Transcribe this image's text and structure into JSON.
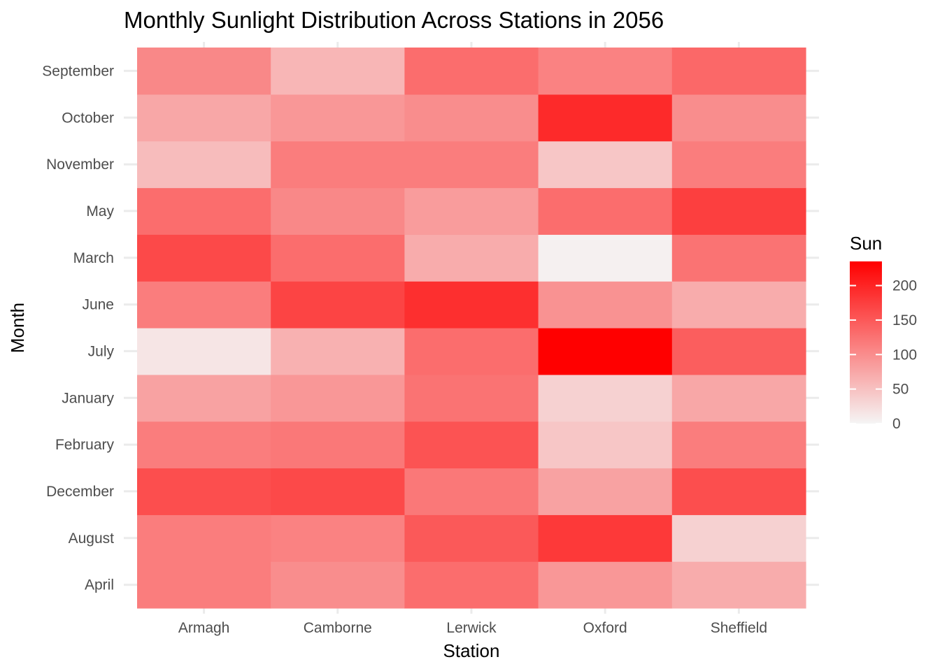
{
  "chart_data": {
    "type": "heatmap",
    "title": "Monthly Sunlight Distribution Across Stations in 2056",
    "xlabel": "Station",
    "ylabel": "Month",
    "x_categories": [
      "Armagh",
      "Camborne",
      "Lerwick",
      "Oxford",
      "Sheffield"
    ],
    "y_categories": [
      "April",
      "August",
      "December",
      "February",
      "January",
      "July",
      "June",
      "March",
      "May",
      "November",
      "October",
      "September"
    ],
    "values": [
      [
        115,
        100,
        130,
        90,
        70
      ],
      [
        115,
        110,
        150,
        180,
        35
      ],
      [
        160,
        165,
        120,
        80,
        160
      ],
      [
        115,
        120,
        155,
        45,
        115
      ],
      [
        80,
        90,
        125,
        35,
        75
      ],
      [
        15,
        65,
        130,
        235,
        145
      ],
      [
        115,
        170,
        190,
        95,
        70
      ],
      [
        165,
        130,
        70,
        5,
        125
      ],
      [
        130,
        105,
        85,
        130,
        175
      ],
      [
        55,
        115,
        115,
        45,
        115
      ],
      [
        75,
        90,
        100,
        195,
        100
      ],
      [
        105,
        60,
        130,
        110,
        135
      ]
    ],
    "color_scale": {
      "low": "#f5f5f5",
      "high": "#ff0000",
      "min": 0,
      "max": 235
    },
    "legend": {
      "title": "Sun",
      "ticks": [
        0,
        50,
        100,
        150,
        200
      ],
      "position": "right"
    },
    "grid": true
  }
}
